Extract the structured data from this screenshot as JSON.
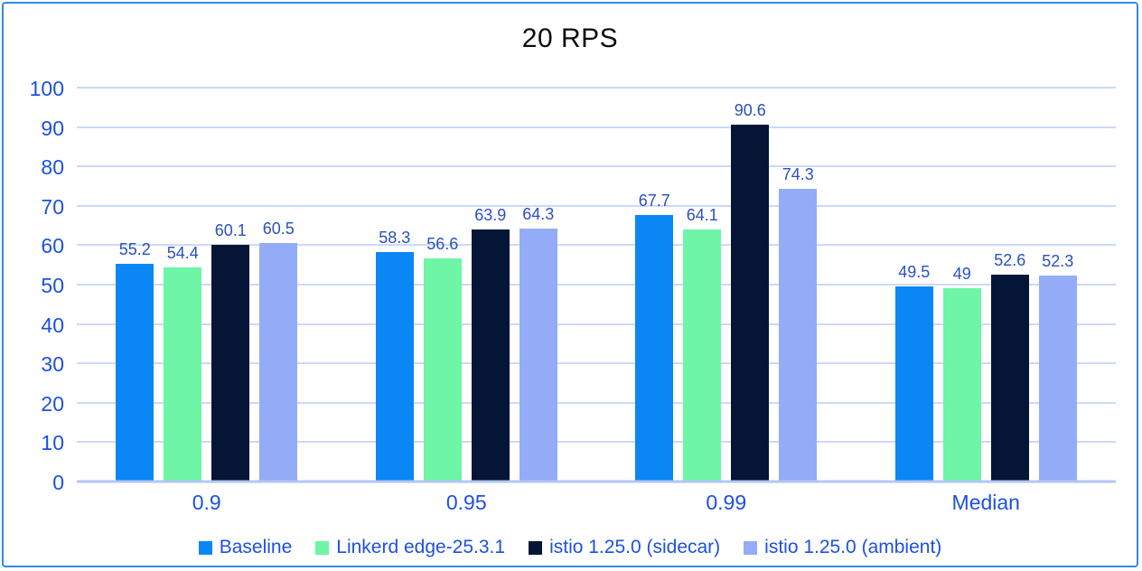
{
  "page": {
    "background": "#ffffff",
    "frame_border_color": "#338ae0"
  },
  "chart_data": {
    "type": "bar",
    "title": "20 RPS",
    "categories": [
      "0.9",
      "0.95",
      "0.99",
      "Median"
    ],
    "series": [
      {
        "name": "Baseline",
        "color": "#0a87f5",
        "values": [
          55.2,
          58.3,
          67.7,
          49.5
        ]
      },
      {
        "name": "Linkerd edge-25.3.1",
        "color": "#6ef5a6",
        "values": [
          54.4,
          56.6,
          64.1,
          49
        ]
      },
      {
        "name": "istio 1.25.0 (sidecar)",
        "color": "#051535",
        "values": [
          60.1,
          63.9,
          90.6,
          52.6
        ]
      },
      {
        "name": "istio 1.25.0 (ambient)",
        "color": "#94acf7",
        "values": [
          60.5,
          64.3,
          74.3,
          52.3
        ]
      }
    ],
    "ylim": [
      0,
      100
    ],
    "yticks": [
      0,
      10,
      20,
      30,
      40,
      50,
      60,
      70,
      80,
      90,
      100
    ],
    "grid": true,
    "legend_position": "bottom",
    "colors": {
      "axis_text": "#1d50e3",
      "value_label_text": "#2b50c0",
      "gridline": "#ccd9f7",
      "zero_axis_line": "#b3c5f4",
      "title_text": "#0d0d0d"
    }
  }
}
